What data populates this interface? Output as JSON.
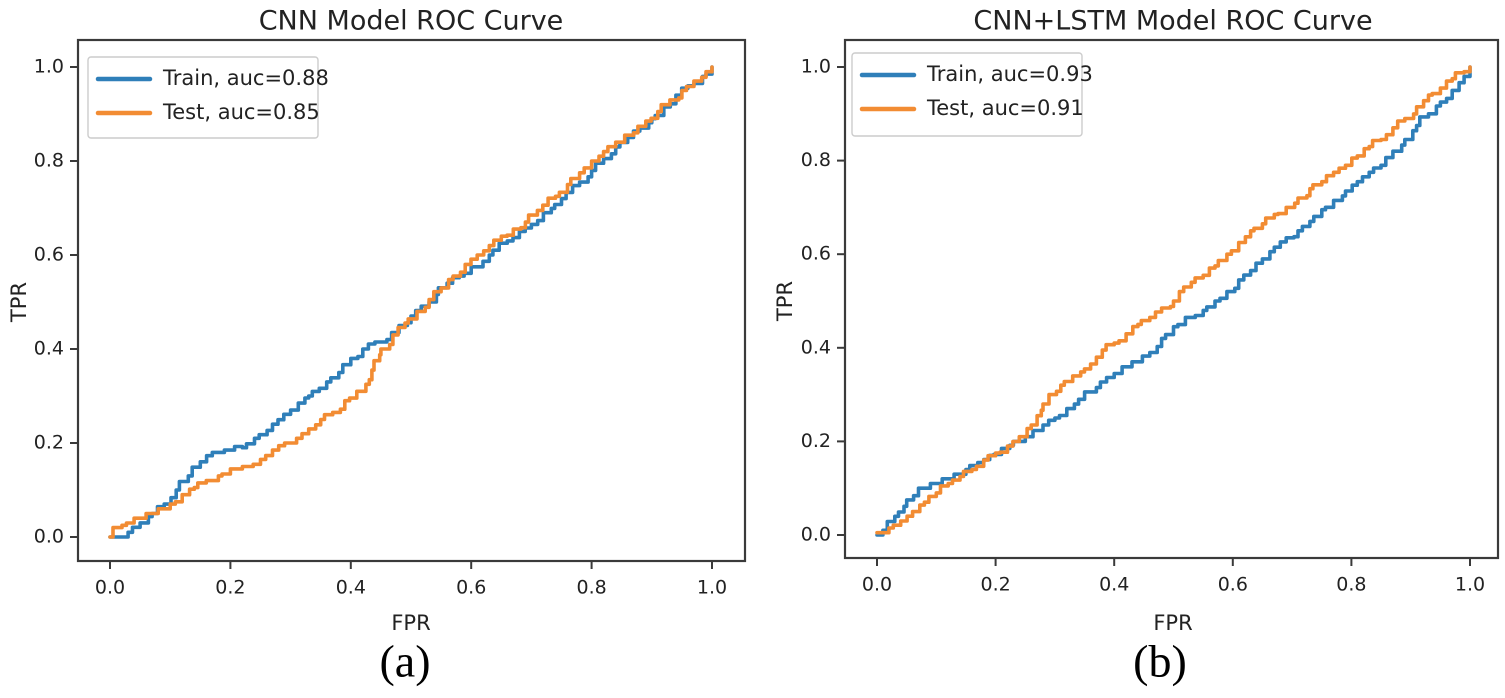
{
  "figure": {
    "background": "#ffffff",
    "text_color": "#222222",
    "spine_color": "#3a3a3a",
    "legend_border_color": "#cccccc"
  },
  "chart_data": [
    {
      "type": "line",
      "id": "a",
      "title": "CNN Model ROC Curve",
      "xlabel": "FPR",
      "ylabel": "TPR",
      "caption": "(a)",
      "grid": false,
      "legend_position": "upper left",
      "xlim": [
        -0.05,
        1.05
      ],
      "ylim": [
        -0.05,
        1.05
      ],
      "xticks": [
        0.0,
        0.2,
        0.4,
        0.6,
        0.8,
        1.0
      ],
      "yticks": [
        0.0,
        0.2,
        0.4,
        0.6,
        0.8,
        1.0
      ],
      "xtick_labels": [
        "0.0",
        "0.2",
        "0.4",
        "0.6",
        "0.8",
        "1.0"
      ],
      "ytick_labels": [
        "0.0",
        "0.2",
        "0.4",
        "0.6",
        "0.8",
        "1.0"
      ],
      "series": [
        {
          "name": "Train, auc=0.88",
          "auc": 0.88,
          "color": "#2f7fb9",
          "points": [
            [
              0,
              0
            ],
            [
              0.02,
              0
            ],
            [
              0.03,
              0.01
            ],
            [
              0.05,
              0.03
            ],
            [
              0.07,
              0.05
            ],
            [
              0.09,
              0.07
            ],
            [
              0.11,
              0.1
            ],
            [
              0.13,
              0.13
            ],
            [
              0.15,
              0.16
            ],
            [
              0.17,
              0.18
            ],
            [
              0.19,
              0.185
            ],
            [
              0.22,
              0.19
            ],
            [
              0.24,
              0.21
            ],
            [
              0.27,
              0.24
            ],
            [
              0.3,
              0.27
            ],
            [
              0.33,
              0.3
            ],
            [
              0.36,
              0.33
            ],
            [
              0.38,
              0.35
            ],
            [
              0.4,
              0.38
            ],
            [
              0.42,
              0.4
            ],
            [
              0.44,
              0.415
            ],
            [
              0.46,
              0.42
            ],
            [
              0.48,
              0.45
            ],
            [
              0.5,
              0.47
            ],
            [
              0.53,
              0.5
            ],
            [
              0.56,
              0.54
            ],
            [
              0.58,
              0.555
            ],
            [
              0.6,
              0.575
            ],
            [
              0.63,
              0.6
            ],
            [
              0.66,
              0.63
            ],
            [
              0.68,
              0.65
            ],
            [
              0.7,
              0.665
            ],
            [
              0.72,
              0.69
            ],
            [
              0.75,
              0.72
            ],
            [
              0.78,
              0.755
            ],
            [
              0.8,
              0.78
            ],
            [
              0.82,
              0.805
            ],
            [
              0.84,
              0.83
            ],
            [
              0.86,
              0.85
            ],
            [
              0.88,
              0.87
            ],
            [
              0.9,
              0.89
            ],
            [
              0.92,
              0.915
            ],
            [
              0.94,
              0.94
            ],
            [
              0.96,
              0.96
            ],
            [
              0.97,
              0.965
            ],
            [
              0.99,
              0.985
            ],
            [
              1.0,
              1.0
            ]
          ]
        },
        {
          "name": "Test, auc=0.85",
          "auc": 0.85,
          "color": "#f28c33",
          "points": [
            [
              0,
              0
            ],
            [
              0.005,
              0.02
            ],
            [
              0.02,
              0.025
            ],
            [
              0.04,
              0.04
            ],
            [
              0.06,
              0.05
            ],
            [
              0.08,
              0.06
            ],
            [
              0.1,
              0.07
            ],
            [
              0.12,
              0.09
            ],
            [
              0.14,
              0.105
            ],
            [
              0.16,
              0.12
            ],
            [
              0.18,
              0.13
            ],
            [
              0.2,
              0.145
            ],
            [
              0.22,
              0.15
            ],
            [
              0.25,
              0.165
            ],
            [
              0.27,
              0.185
            ],
            [
              0.29,
              0.2
            ],
            [
              0.31,
              0.21
            ],
            [
              0.33,
              0.23
            ],
            [
              0.35,
              0.25
            ],
            [
              0.37,
              0.265
            ],
            [
              0.39,
              0.29
            ],
            [
              0.41,
              0.31
            ],
            [
              0.425,
              0.325
            ],
            [
              0.435,
              0.355
            ],
            [
              0.45,
              0.4
            ],
            [
              0.47,
              0.43
            ],
            [
              0.49,
              0.455
            ],
            [
              0.51,
              0.48
            ],
            [
              0.53,
              0.505
            ],
            [
              0.55,
              0.53
            ],
            [
              0.57,
              0.555
            ],
            [
              0.59,
              0.58
            ],
            [
              0.61,
              0.6
            ],
            [
              0.63,
              0.62
            ],
            [
              0.65,
              0.64
            ],
            [
              0.67,
              0.655
            ],
            [
              0.69,
              0.67
            ],
            [
              0.71,
              0.695
            ],
            [
              0.74,
              0.725
            ],
            [
              0.76,
              0.75
            ],
            [
              0.78,
              0.775
            ],
            [
              0.8,
              0.8
            ],
            [
              0.82,
              0.82
            ],
            [
              0.84,
              0.84
            ],
            [
              0.855,
              0.855
            ],
            [
              0.87,
              0.86
            ],
            [
              0.89,
              0.885
            ],
            [
              0.91,
              0.905
            ],
            [
              0.93,
              0.93
            ],
            [
              0.95,
              0.95
            ],
            [
              0.97,
              0.97
            ],
            [
              0.99,
              0.99
            ],
            [
              1.0,
              1.0
            ]
          ]
        }
      ]
    },
    {
      "type": "line",
      "id": "b",
      "title": "CNN+LSTM Model ROC Curve",
      "xlabel": "FPR",
      "ylabel": "TPR",
      "caption": "(b)",
      "grid": false,
      "legend_position": "upper left",
      "xlim": [
        -0.05,
        1.05
      ],
      "ylim": [
        -0.05,
        1.05
      ],
      "xticks": [
        0.0,
        0.2,
        0.4,
        0.6,
        0.8,
        1.0
      ],
      "yticks": [
        0.0,
        0.2,
        0.4,
        0.6,
        0.8,
        1.0
      ],
      "xtick_labels": [
        "0.0",
        "0.2",
        "0.4",
        "0.6",
        "0.8",
        "1.0"
      ],
      "ytick_labels": [
        "0.0",
        "0.2",
        "0.4",
        "0.6",
        "0.8",
        "1.0"
      ],
      "series": [
        {
          "name": "Train, auc=0.93",
          "auc": 0.93,
          "color": "#2f7fb9",
          "points": [
            [
              0,
              0
            ],
            [
              0.01,
              0.01
            ],
            [
              0.03,
              0.04
            ],
            [
              0.05,
              0.075
            ],
            [
              0.07,
              0.1
            ],
            [
              0.09,
              0.11
            ],
            [
              0.11,
              0.12
            ],
            [
              0.13,
              0.13
            ],
            [
              0.15,
              0.14
            ],
            [
              0.17,
              0.155
            ],
            [
              0.19,
              0.17
            ],
            [
              0.21,
              0.185
            ],
            [
              0.23,
              0.2
            ],
            [
              0.25,
              0.21
            ],
            [
              0.28,
              0.235
            ],
            [
              0.3,
              0.25
            ],
            [
              0.32,
              0.27
            ],
            [
              0.34,
              0.29
            ],
            [
              0.37,
              0.315
            ],
            [
              0.4,
              0.345
            ],
            [
              0.43,
              0.37
            ],
            [
              0.46,
              0.39
            ],
            [
              0.48,
              0.42
            ],
            [
              0.5,
              0.445
            ],
            [
              0.52,
              0.465
            ],
            [
              0.55,
              0.48
            ],
            [
              0.57,
              0.5
            ],
            [
              0.59,
              0.52
            ],
            [
              0.61,
              0.545
            ],
            [
              0.63,
              0.565
            ],
            [
              0.65,
              0.59
            ],
            [
              0.67,
              0.615
            ],
            [
              0.69,
              0.635
            ],
            [
              0.71,
              0.65
            ],
            [
              0.73,
              0.67
            ],
            [
              0.75,
              0.695
            ],
            [
              0.77,
              0.715
            ],
            [
              0.79,
              0.735
            ],
            [
              0.81,
              0.755
            ],
            [
              0.83,
              0.775
            ],
            [
              0.85,
              0.79
            ],
            [
              0.87,
              0.82
            ],
            [
              0.89,
              0.845
            ],
            [
              0.91,
              0.875
            ],
            [
              0.93,
              0.9
            ],
            [
              0.95,
              0.925
            ],
            [
              0.97,
              0.95
            ],
            [
              0.99,
              0.98
            ],
            [
              1.0,
              1.0
            ]
          ]
        },
        {
          "name": "Test, auc=0.91",
          "auc": 0.91,
          "color": "#f28c33",
          "points": [
            [
              0,
              0.005
            ],
            [
              0.02,
              0.015
            ],
            [
              0.04,
              0.03
            ],
            [
              0.06,
              0.05
            ],
            [
              0.08,
              0.07
            ],
            [
              0.1,
              0.09
            ],
            [
              0.12,
              0.11
            ],
            [
              0.14,
              0.125
            ],
            [
              0.16,
              0.14
            ],
            [
              0.18,
              0.16
            ],
            [
              0.2,
              0.175
            ],
            [
              0.22,
              0.19
            ],
            [
              0.24,
              0.21
            ],
            [
              0.26,
              0.235
            ],
            [
              0.27,
              0.255
            ],
            [
              0.28,
              0.28
            ],
            [
              0.29,
              0.3
            ],
            [
              0.31,
              0.32
            ],
            [
              0.33,
              0.34
            ],
            [
              0.35,
              0.355
            ],
            [
              0.37,
              0.38
            ],
            [
              0.38,
              0.395
            ],
            [
              0.4,
              0.41
            ],
            [
              0.42,
              0.43
            ],
            [
              0.44,
              0.45
            ],
            [
              0.46,
              0.465
            ],
            [
              0.48,
              0.485
            ],
            [
              0.5,
              0.5
            ],
            [
              0.51,
              0.52
            ],
            [
              0.53,
              0.54
            ],
            [
              0.55,
              0.555
            ],
            [
              0.57,
              0.575
            ],
            [
              0.59,
              0.6
            ],
            [
              0.61,
              0.625
            ],
            [
              0.63,
              0.65
            ],
            [
              0.65,
              0.665
            ],
            [
              0.67,
              0.685
            ],
            [
              0.69,
              0.7
            ],
            [
              0.71,
              0.72
            ],
            [
              0.73,
              0.74
            ],
            [
              0.75,
              0.755
            ],
            [
              0.77,
              0.775
            ],
            [
              0.79,
              0.79
            ],
            [
              0.81,
              0.81
            ],
            [
              0.83,
              0.83
            ],
            [
              0.85,
              0.845
            ],
            [
              0.87,
              0.87
            ],
            [
              0.89,
              0.89
            ],
            [
              0.91,
              0.915
            ],
            [
              0.93,
              0.94
            ],
            [
              0.95,
              0.955
            ],
            [
              0.97,
              0.975
            ],
            [
              0.99,
              0.99
            ],
            [
              1.0,
              1.0
            ]
          ]
        }
      ]
    }
  ]
}
